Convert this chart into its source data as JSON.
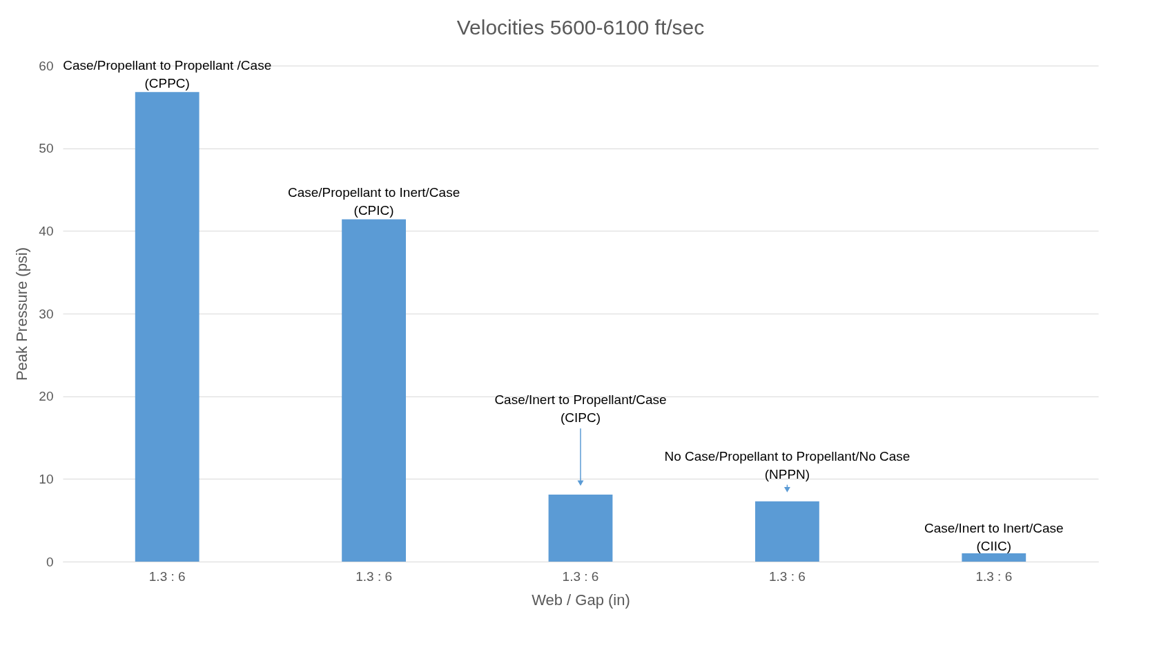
{
  "chart_data": {
    "type": "bar",
    "title": "Velocities 5600-6100 ft/sec",
    "xlabel": "Web / Gap (in)",
    "ylabel": "Peak Pressure (psi)",
    "categories": [
      "1.3 : 6",
      "1.3 : 6",
      "1.3 : 6",
      "1.3 : 6",
      "1.3 : 6"
    ],
    "values": [
      56.8,
      41.4,
      8.1,
      7.3,
      1.0
    ],
    "color": "#5b9bd5",
    "ylim": [
      0,
      60
    ],
    "yticks": [
      0,
      10,
      20,
      30,
      40,
      50,
      60
    ],
    "grid": "y",
    "annotations": [
      "Case/Propellant to Propellant /Case\n(CPPC)",
      "Case/Propellant to Inert/Case\n(CPIC)",
      "Case/Inert to Propellant/Case\n(CIPC)",
      "No Case/Propellant to Propellant/No Case\n(NPPN)",
      "Case/Inert to Inert/Case\n(CIIC)"
    ]
  }
}
